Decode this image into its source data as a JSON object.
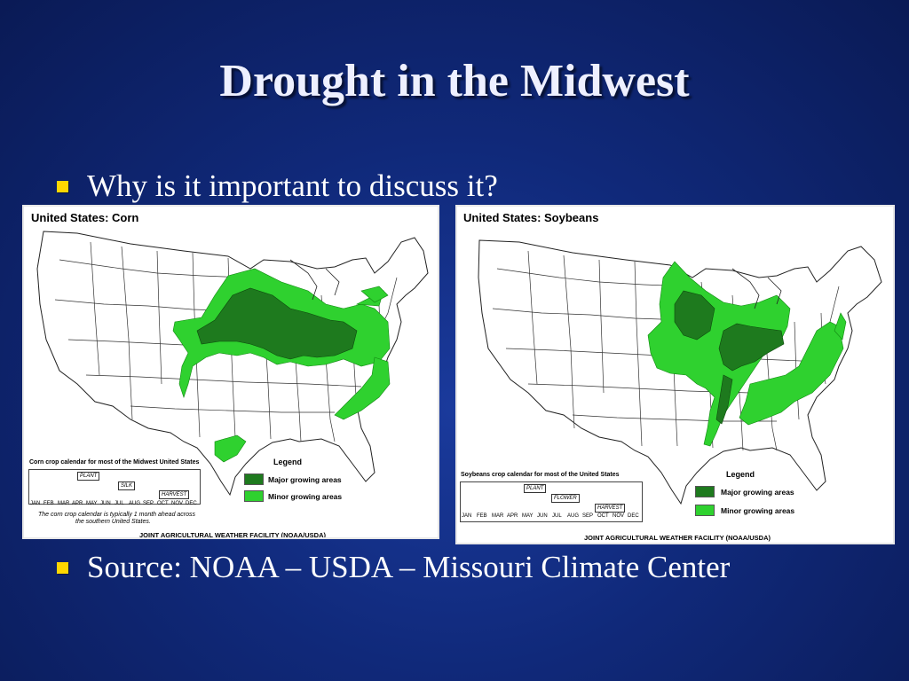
{
  "slide": {
    "title": "Drought in the Midwest",
    "bullets": [
      "Why is it important to discuss it?",
      "Source: NOAA – USDA – Missouri Climate Center"
    ]
  },
  "colors": {
    "major": "#1e7a1e",
    "minor": "#2fd12f",
    "bullet": "#ffd700"
  },
  "corn_map": {
    "title": "United States:  Corn",
    "calendar_title": "Corn crop calendar for most of the Midwest United States",
    "stages": [
      "PLANT",
      "SILK",
      "HARVEST"
    ],
    "months": [
      "JAN",
      "FEB",
      "MAR",
      "APR",
      "MAY",
      "JUN",
      "JUL",
      "AUG",
      "SEP",
      "OCT",
      "NOV",
      "DEC"
    ],
    "note_line1": "The corn crop calendar  is typically 1 month ahead across",
    "note_line2": "the southern United States.",
    "legend_title": "Legend",
    "legend_major": "Major growing areas",
    "legend_minor": "Minor growing areas",
    "footer": "JOINT AGRICULTURAL WEATHER FACILITY (NOAA/USDA)"
  },
  "soy_map": {
    "title": "United States:  Soybeans",
    "calendar_title": "Soybeans crop calendar for most of the United States",
    "stages": [
      "PLANT",
      "FLOWER",
      "HARVEST"
    ],
    "months": [
      "JAN",
      "FEB",
      "MAR",
      "APR",
      "MAY",
      "JUN",
      "JUL",
      "AUG",
      "SEP",
      "OCT",
      "NOV",
      "DEC"
    ],
    "legend_title": "Legend",
    "legend_major": "Major growing areas",
    "legend_minor": "Minor growing areas",
    "footer": "JOINT AGRICULTURAL WEATHER FACILITY (NOAA/USDA)"
  }
}
